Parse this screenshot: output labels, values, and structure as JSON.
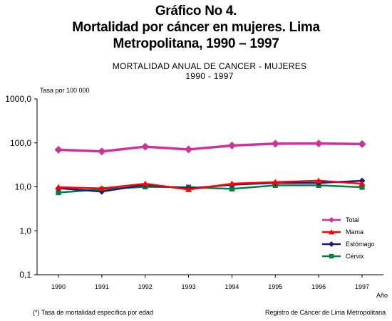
{
  "figure": {
    "title_lines": [
      "Gráfico No 4.",
      "Mortalidad por cáncer en mujeres. Lima",
      "Metropolitana, 1990 – 1997"
    ],
    "footnote": "(*) Tasa de mortalidad específica por edad",
    "source": "Registro de Cáncer de Lima Metropolitana"
  },
  "chart_data": {
    "type": "line",
    "title": "MORTALIDAD ANUAL DE CANCER - MUJERES",
    "subtitle": "1990 - 1997",
    "ylabel": "Tasa por 100 000",
    "xlabel": "Año",
    "yscale": "log",
    "ylim": [
      0.1,
      1000
    ],
    "yticks": [
      0.1,
      1,
      10,
      100,
      1000
    ],
    "ytick_labels": [
      "0,1",
      "1,0",
      "10,0",
      "100,0",
      "1000,0"
    ],
    "x": [
      1990,
      1991,
      1992,
      1993,
      1994,
      1995,
      1996,
      1997
    ],
    "legend_position": "lower-right",
    "grid": false,
    "series": [
      {
        "name": "Total",
        "color": "#cc3399",
        "marker": "diamond",
        "values": [
          70,
          64,
          82,
          71,
          87,
          96,
          97,
          94
        ]
      },
      {
        "name": "Mama",
        "color": "#ff0000",
        "marker": "triangle",
        "values": [
          9.8,
          9.2,
          11.8,
          8.7,
          11.8,
          12.8,
          13.8,
          11.8
        ]
      },
      {
        "name": "Estómago",
        "color": "#1a1a80",
        "marker": "diamond",
        "values": [
          9.3,
          7.8,
          11.1,
          9.2,
          11.2,
          12.3,
          12.3,
          13.7
        ]
      },
      {
        "name": "Cérvix",
        "color": "#008040",
        "marker": "square",
        "values": [
          7.4,
          8.8,
          10.0,
          9.8,
          9.0,
          10.8,
          10.8,
          9.8
        ]
      }
    ]
  }
}
